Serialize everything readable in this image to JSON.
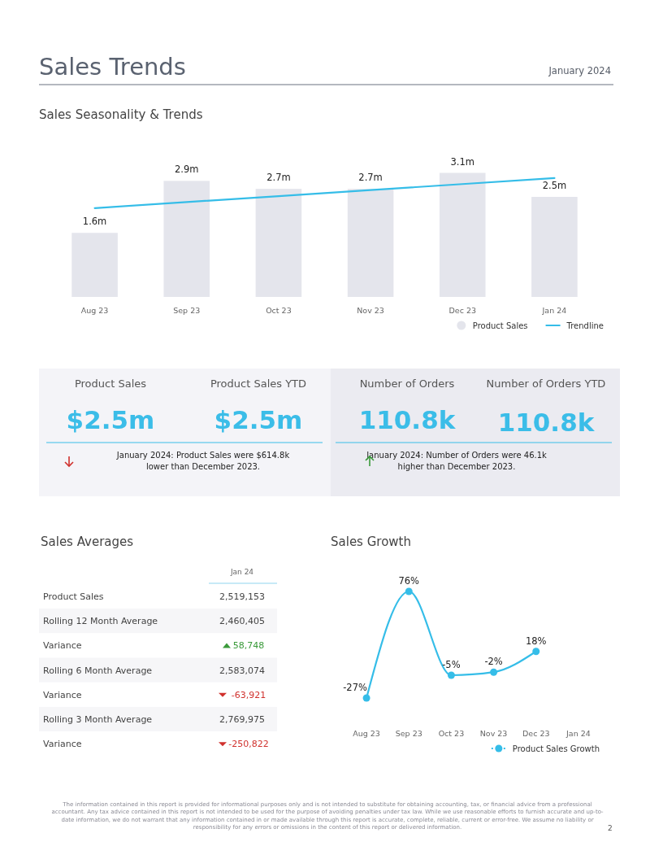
{
  "chart_data": [
    {
      "type": "other",
      "title": "Sales Trends",
      "subtitle": "January 2024"
    },
    {
      "type": "bar",
      "title": "Sales Seasonality & Trends",
      "categories": [
        "Aug 23",
        "Sep 23",
        "Oct 23",
        "Nov 23",
        "Dec 23",
        "Jan 24"
      ],
      "legend": "bottom right",
      "series": [
        {
          "name": "Product Sales",
          "type": "bar",
          "color": "#e4e5ec",
          "values": [
            1.6,
            2.9,
            2.7,
            2.7,
            3.1,
            2.5
          ],
          "value_labels": [
            "1.6m",
            "2.9m",
            "2.7m",
            "2.7m",
            "3.1m",
            "2.5m"
          ]
        },
        {
          "name": "Trendline",
          "type": "line",
          "color": "#35bde8",
          "values": [
            2.22,
            2.37,
            2.52,
            2.67,
            2.82,
            2.97
          ]
        }
      ]
    },
    {
      "type": "other",
      "categories": [
        "Product Sales",
        "Product Sales YTD",
        "Number of Orders",
        "Number of Orders YTD"
      ],
      "value_labels": [
        "$2.5m",
        "$2.5m",
        "110.8k",
        "110.8k"
      ],
      "annotations": [
        "January 2024: Product Sales were $614.8k lower than December 2023.",
        "January 2024: Number of Orders were 46.1k higher than December 2023."
      ]
    },
    {
      "type": "other",
      "title": "Sales Averages",
      "xlabel": "Jan 24",
      "categories": [
        "Product Sales",
        "Rolling 12 Month Average",
        "Variance",
        "Rolling 6 Month Average",
        "Variance",
        "Rolling 3 Month Average",
        "Variance"
      ],
      "value_labels": [
        "2,519,153",
        "2,460,405",
        "58,748",
        "2,583,074",
        "-63,921",
        "2,769,975",
        "-250,822"
      ],
      "colors": [
        null,
        null,
        "#3a9a3a",
        null,
        "#d0312d",
        null,
        "#d0312d"
      ]
    },
    {
      "type": "line",
      "title": "Sales Growth",
      "categories": [
        "Aug 23",
        "Sep 23",
        "Oct 23",
        "Nov 23",
        "Dec 23",
        "Jan 24"
      ],
      "legend": "bottom right",
      "marker": "circle",
      "series": [
        {
          "name": "Product Sales Growth",
          "color": "#35bde8",
          "values": [
            -27,
            76,
            -5,
            -2,
            18,
            null
          ],
          "value_labels": [
            "-27%",
            "76%",
            "-5%",
            "-2%",
            "18%",
            null
          ]
        }
      ]
    },
    {
      "type": "other",
      "annotations": [
        "The information contained in this report is provided for informational purposes only and is not intended to substitute for obtaining accounting, tax, or financial advice from a professional accountant. Any tax advice contained in this report is not intended to be used for the purpose of avoiding penalties under tax law. While we use reasonable efforts to furnish accurate and up-to-date information, we do not warrant that any information contained in or made available through this report is accurate, complete, reliable, current or error-free. We assume no liability or responsibility for any errors or omissions in the content of this report or delivered information.",
        "2"
      ]
    }
  ]
}
